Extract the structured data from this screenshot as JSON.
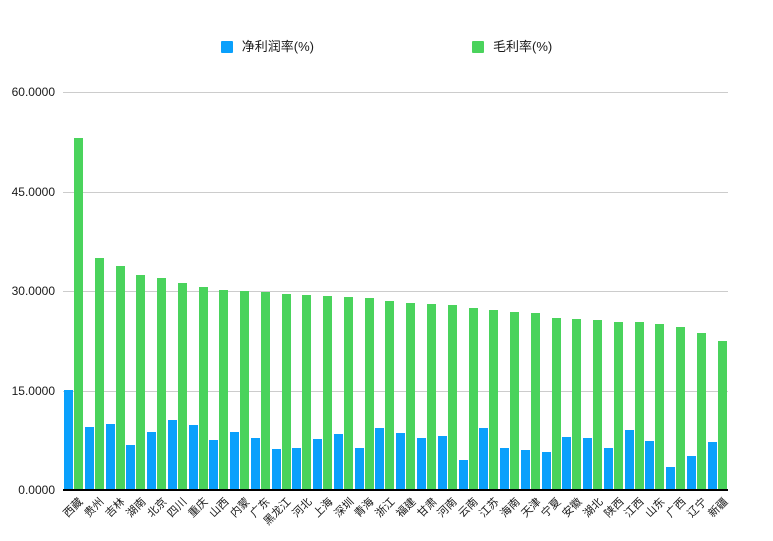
{
  "legend": {
    "items": [
      {
        "label": "净利润率(%)",
        "color": "#0AA0FC"
      },
      {
        "label": "毛利率(%)",
        "color": "#4AD35C"
      }
    ]
  },
  "chart_data": {
    "type": "bar",
    "title": "",
    "xlabel": "",
    "ylabel": "",
    "categories": [
      "西藏",
      "贵州",
      "吉林",
      "湖南",
      "北京",
      "四川",
      "重庆",
      "山西",
      "内蒙",
      "广东",
      "黑龙江",
      "河北",
      "上海",
      "深圳",
      "青海",
      "浙江",
      "福建",
      "甘肃",
      "河南",
      "云南",
      "江苏",
      "海南",
      "天津",
      "宁夏",
      "安徽",
      "湖北",
      "陕西",
      "江西",
      "山东",
      "广西",
      "辽宁",
      "新疆"
    ],
    "series": [
      {
        "name": "净利润率(%)",
        "color": "#0AA0FC",
        "values": [
          15.1,
          9.5,
          10.0,
          6.8,
          8.7,
          10.6,
          9.8,
          7.5,
          8.7,
          7.8,
          6.2,
          6.3,
          7.7,
          8.4,
          6.4,
          9.3,
          8.6,
          7.8,
          8.2,
          4.5,
          9.3,
          6.4,
          6.1,
          5.8,
          8.0,
          7.8,
          6.3,
          9.0,
          7.4,
          3.5,
          5.2,
          7.3
        ]
      },
      {
        "name": "毛利率(%)",
        "color": "#4AD35C",
        "values": [
          53.1,
          35.0,
          33.8,
          32.4,
          32.0,
          31.2,
          30.6,
          30.1,
          30.0,
          29.8,
          29.5,
          29.4,
          29.3,
          29.1,
          28.9,
          28.5,
          28.2,
          28.0,
          27.9,
          27.4,
          27.2,
          26.9,
          26.7,
          26.0,
          25.8,
          25.7,
          25.4,
          25.3,
          25.1,
          24.6,
          23.6,
          22.5
        ]
      }
    ],
    "ylim": [
      0,
      60
    ],
    "y_ticks": [
      "60.0000",
      "45.0000",
      "30.0000",
      "15.0000",
      "0.0000"
    ],
    "grid": true,
    "legend_position": "top",
    "x_label_rotation": -45
  }
}
